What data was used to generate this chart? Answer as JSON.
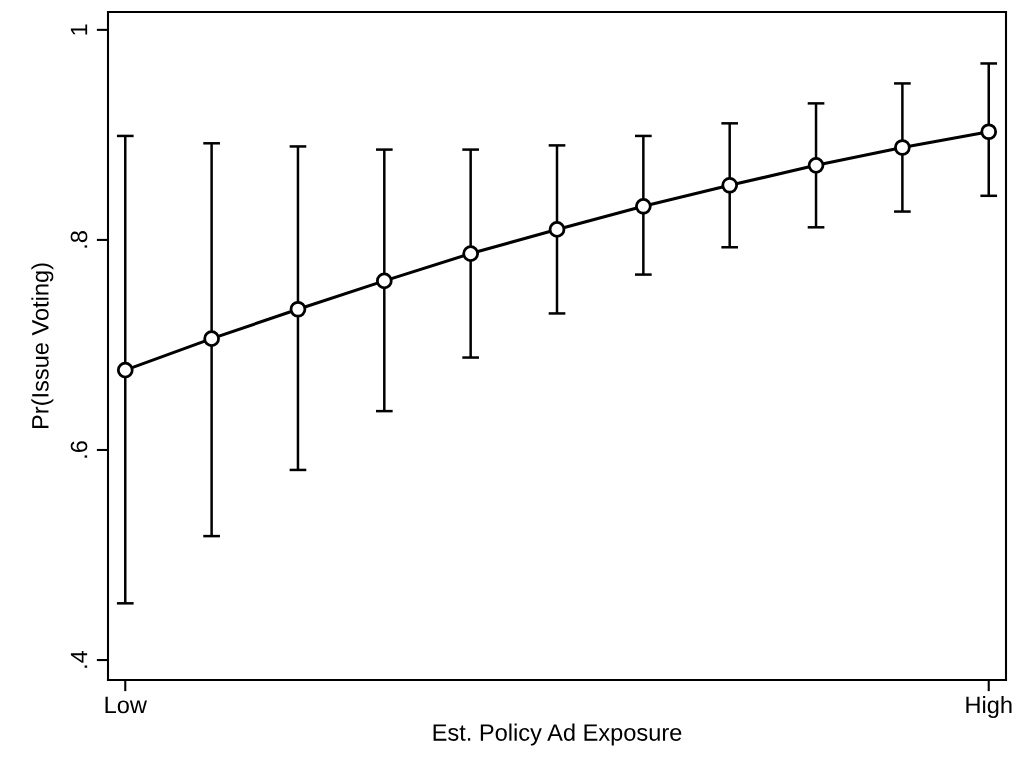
{
  "chart_data": {
    "type": "line",
    "xlabel": "Est. Policy Ad Exposure",
    "ylabel": "Pr(Issue Voting)",
    "categories": [
      "Low",
      null,
      null,
      null,
      null,
      null,
      null,
      null,
      null,
      null,
      "High"
    ],
    "series": [
      {
        "color": "#000000",
        "values": [
          0.676,
          0.706,
          0.734,
          0.761,
          0.787,
          0.81,
          0.832,
          0.852,
          0.871,
          0.888,
          0.903
        ],
        "errors": [
          [
            0.454,
            0.899
          ],
          [
            0.518,
            0.892
          ],
          [
            0.581,
            0.889
          ],
          [
            0.637,
            0.886
          ],
          [
            0.688,
            0.886
          ],
          [
            0.73,
            0.89
          ],
          [
            0.767,
            0.899
          ],
          [
            0.793,
            0.911
          ],
          [
            0.812,
            0.93
          ],
          [
            0.827,
            0.949
          ],
          [
            0.842,
            0.968
          ]
        ]
      }
    ],
    "ylim": [
      0.381,
      1.017
    ],
    "yticks": [
      {
        "value": 0.4,
        "label": ".4"
      },
      {
        "value": 0.6,
        "label": ".6"
      },
      {
        "value": 0.8,
        "label": ".8"
      },
      {
        "value": 1,
        "label": "1"
      }
    ],
    "marker": "circle",
    "line_style": "solid",
    "grid": false,
    "legend": false
  }
}
